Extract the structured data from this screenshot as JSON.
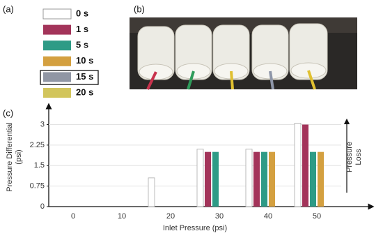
{
  "panels": [
    "(a)",
    "(b)",
    "(c)"
  ],
  "chart_data": {
    "type": "bar",
    "xlabel": "Inlet Pressure (psi)",
    "ylabel": [
      "Pressure Differential",
      "(psi)"
    ],
    "annotation": [
      "Pressure",
      "Loss"
    ],
    "x": [
      0,
      10,
      20,
      30,
      40,
      50
    ],
    "xlim": [
      -5,
      60
    ],
    "xticks": [
      0,
      10,
      20,
      30,
      40,
      50
    ],
    "ylim": [
      0,
      3.6
    ],
    "yticks": [
      0,
      0.75,
      1.5,
      2.25,
      3
    ],
    "grid": true,
    "series": [
      {
        "name": "0 s",
        "color": "#ffffff",
        "values": [
          null,
          null,
          1.05,
          2.1,
          2.1,
          3.05
        ]
      },
      {
        "name": "1 s",
        "color": "#a3345a",
        "values": [
          null,
          null,
          null,
          2.0,
          2.0,
          3.0
        ]
      },
      {
        "name": "5 s",
        "color": "#2e9b86",
        "values": [
          null,
          null,
          null,
          2.0,
          2.0,
          2.0
        ]
      },
      {
        "name": "10 s",
        "color": "#d4a040",
        "values": [
          null,
          null,
          null,
          null,
          2.0,
          2.0
        ]
      },
      {
        "name": "15 s",
        "color": "#9096a4",
        "values": [
          null,
          null,
          null,
          null,
          null,
          null
        ]
      },
      {
        "name": "20 s",
        "color": "#d2c55c",
        "values": [
          null,
          null,
          null,
          null,
          null,
          null
        ]
      }
    ]
  }
}
